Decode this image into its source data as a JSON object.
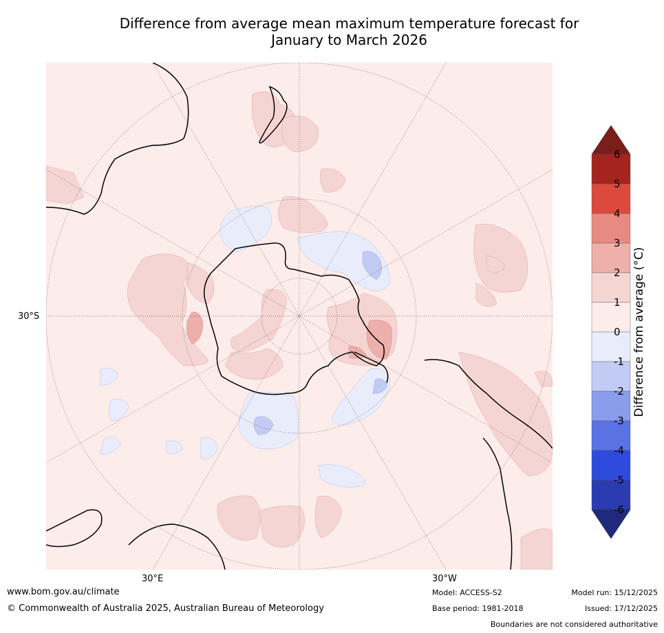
{
  "title_line1": "Difference from average mean maximum temperature forecast for",
  "title_line2": "January to March 2026",
  "map": {
    "lat_label": "30°S",
    "lon_labels": [
      "30°E",
      "30°W"
    ],
    "colors": {
      "band_0_1": "#fcecea",
      "band_1_2": "#f5d5d3",
      "band_2_3": "#edafab",
      "band_3_4": "#e88a84",
      "band_m1_0": "#e9edfb",
      "band_m2_m1": "#c2cbf4",
      "land": "#000000"
    }
  },
  "colorbar": {
    "title": "Difference from average (°C)",
    "ticks": [
      "6",
      "5",
      "4",
      "3",
      "2",
      "1",
      "0",
      "-1",
      "-2",
      "-3",
      "-4",
      "-5",
      "-6"
    ],
    "colors": [
      "#a5241f",
      "#dc4a3d",
      "#e98a82",
      "#eeb0a9",
      "#f5d5d2",
      "#fcecea",
      "#e9edfb",
      "#c2cbf4",
      "#8a9cec",
      "#5a72e4",
      "#2f4bde",
      "#2b3bb0"
    ],
    "over_color": "#7a1e19",
    "under_color": "#1f2a7c"
  },
  "footer": {
    "url": "www.bom.gov.au/climate",
    "copyright": "© Commonwealth of Australia 2025, Australian Bureau of Meteorology",
    "model": "Model: ACCESS-S2",
    "base_period": "Base period: 1981-2018",
    "model_run": "Model run: 15/12/2025",
    "issued": "Issued: 17/12/2025",
    "disclaimer": "Boundaries are not considered authoritative"
  }
}
